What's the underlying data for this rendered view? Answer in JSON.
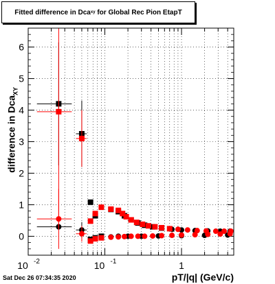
{
  "title": {
    "main": "Fitted difference in Dca",
    "sub": "xy",
    "rest": " for Global Rec Pion EtapT"
  },
  "axes": {
    "ylabel_main": "difference in Dca",
    "ylabel_sub": "XY",
    "xlabel": "pT/|q| (GeV/c)",
    "x_ticks": [
      {
        "value": 0.01,
        "label_base": "10",
        "label_exp": "-2"
      },
      {
        "value": 0.1,
        "label_base": "10",
        "label_exp": "-1"
      },
      {
        "value": 1,
        "label_base": "1",
        "label_exp": ""
      },
      {
        "value": 5,
        "label_base": "",
        "label_exp": ""
      }
    ],
    "y_ticks": [
      "0",
      "1",
      "2",
      "3",
      "4",
      "5",
      "6"
    ]
  },
  "timestamp": "Sat Dec 26 07:34:35 2020",
  "chart_data": {
    "type": "scatter",
    "x_scale": "log",
    "xlim": [
      0.01,
      4.8
    ],
    "ylim": [
      -0.6,
      6.6
    ],
    "grid": true,
    "series": [
      {
        "color": "#000000",
        "points": [
          {
            "x": 0.025,
            "y": 4.2,
            "xerr": 0.012,
            "yerr": 1.95
          },
          {
            "x": 0.05,
            "y": 3.25,
            "xerr": 0.008,
            "yerr": 1.05
          },
          {
            "x": 0.025,
            "y": 0.3,
            "xerr": 0.012,
            "yerr": 0
          },
          {
            "x": 0.05,
            "y": 0.2,
            "xerr": 0.008,
            "yerr": 0.25
          },
          {
            "x": 0.065,
            "y": 1.08,
            "xerr": 0.004,
            "yerr": 0
          },
          {
            "x": 0.075,
            "y": 0.65,
            "xerr": 0.004,
            "yerr": 0
          },
          {
            "x": 0.065,
            "y": -0.1,
            "xerr": 0.004,
            "yerr": 0
          },
          {
            "x": 0.075,
            "y": -0.05,
            "xerr": 0.004,
            "yerr": 0
          },
          {
            "x": 0.09,
            "y": 0.0,
            "xerr": 0.006,
            "yerr": 0
          },
          {
            "x": 0.12,
            "y": -0.02,
            "xerr": 0.008,
            "yerr": 0
          },
          {
            "x": 0.15,
            "y": 0.0,
            "xerr": 0.008,
            "yerr": 0
          },
          {
            "x": 0.2,
            "y": 0.0,
            "xerr": 0.01,
            "yerr": 0
          },
          {
            "x": 0.3,
            "y": 0.0,
            "xerr": 0.015,
            "yerr": 0
          },
          {
            "x": 0.5,
            "y": 0.01,
            "xerr": 0.02,
            "yerr": 0
          },
          {
            "x": 1.0,
            "y": 0.02,
            "xerr": 0.05,
            "yerr": 0
          },
          {
            "x": 2.0,
            "y": 0.03,
            "xerr": 0.1,
            "yerr": 0
          },
          {
            "x": 4.0,
            "y": 0.04,
            "xerr": 0.2,
            "yerr": 0
          },
          {
            "x": 0.12,
            "y": 0.85,
            "xerr": 0.008,
            "yerr": 0
          },
          {
            "x": 0.15,
            "y": 0.78,
            "xerr": 0.008,
            "yerr": 0
          },
          {
            "x": 0.18,
            "y": 0.65,
            "xerr": 0.01,
            "yerr": 0
          },
          {
            "x": 0.22,
            "y": 0.52,
            "xerr": 0.01,
            "yerr": 0
          },
          {
            "x": 0.27,
            "y": 0.42,
            "xerr": 0.012,
            "yerr": 0
          },
          {
            "x": 0.33,
            "y": 0.35,
            "xerr": 0.015,
            "yerr": 0
          },
          {
            "x": 0.42,
            "y": 0.3,
            "xerr": 0.02,
            "yerr": 0
          },
          {
            "x": 0.55,
            "y": 0.26,
            "xerr": 0.03,
            "yerr": 0
          },
          {
            "x": 0.75,
            "y": 0.22,
            "xerr": 0.04,
            "yerr": 0
          },
          {
            "x": 1.0,
            "y": 0.2,
            "xerr": 0.05,
            "yerr": 0
          },
          {
            "x": 1.5,
            "y": 0.18,
            "xerr": 0.08,
            "yerr": 0
          },
          {
            "x": 2.2,
            "y": 0.17,
            "xerr": 0.1,
            "yerr": 0
          },
          {
            "x": 3.2,
            "y": 0.16,
            "xerr": 0.15,
            "yerr": 0
          },
          {
            "x": 4.3,
            "y": 0.16,
            "xerr": 0.2,
            "yerr": 0
          }
        ]
      },
      {
        "color": "#ff0000",
        "points": [
          {
            "x": 0.025,
            "y": 3.95,
            "xerr": 0.012,
            "yerr": 3.7
          },
          {
            "x": 0.05,
            "y": 3.1,
            "xerr": 0.008,
            "yerr": 0.9
          },
          {
            "x": 0.025,
            "y": 0.55,
            "xerr": 0.012,
            "yerr": 0.95
          },
          {
            "x": 0.05,
            "y": 0.08,
            "xerr": 0.008,
            "yerr": 0.25
          },
          {
            "x": 0.065,
            "y": 0.48,
            "xerr": 0.004,
            "yerr": 0
          },
          {
            "x": 0.075,
            "y": 0.72,
            "xerr": 0.004,
            "yerr": 0
          },
          {
            "x": 0.09,
            "y": 0.92,
            "xerr": 0.006,
            "yerr": 0
          },
          {
            "x": 0.12,
            "y": 0.86,
            "xerr": 0.008,
            "yerr": 0
          },
          {
            "x": 0.15,
            "y": 0.82,
            "xerr": 0.008,
            "yerr": 0
          },
          {
            "x": 0.17,
            "y": 0.72,
            "xerr": 0.008,
            "yerr": 0
          },
          {
            "x": 0.19,
            "y": 0.62,
            "xerr": 0.01,
            "yerr": 0
          },
          {
            "x": 0.22,
            "y": 0.52,
            "xerr": 0.01,
            "yerr": 0
          },
          {
            "x": 0.26,
            "y": 0.44,
            "xerr": 0.012,
            "yerr": 0
          },
          {
            "x": 0.31,
            "y": 0.38,
            "xerr": 0.015,
            "yerr": 0
          },
          {
            "x": 0.37,
            "y": 0.33,
            "xerr": 0.018,
            "yerr": 0
          },
          {
            "x": 0.45,
            "y": 0.3,
            "xerr": 0.02,
            "yerr": 0
          },
          {
            "x": 0.55,
            "y": 0.27,
            "xerr": 0.03,
            "yerr": 0
          },
          {
            "x": 0.7,
            "y": 0.24,
            "xerr": 0.035,
            "yerr": 0
          },
          {
            "x": 0.9,
            "y": 0.22,
            "xerr": 0.045,
            "yerr": 0
          },
          {
            "x": 1.2,
            "y": 0.2,
            "xerr": 0.06,
            "yerr": 0
          },
          {
            "x": 1.6,
            "y": 0.18,
            "xerr": 0.08,
            "yerr": 0
          },
          {
            "x": 2.1,
            "y": 0.17,
            "xerr": 0.1,
            "yerr": 0
          },
          {
            "x": 2.8,
            "y": 0.16,
            "xerr": 0.14,
            "yerr": 0
          },
          {
            "x": 3.6,
            "y": 0.16,
            "xerr": 0.18,
            "yerr": 0
          },
          {
            "x": 4.4,
            "y": 0.16,
            "xerr": 0.2,
            "yerr": 0
          },
          {
            "x": 0.065,
            "y": -0.15,
            "xerr": 0.004,
            "yerr": 0
          },
          {
            "x": 0.075,
            "y": -0.08,
            "xerr": 0.004,
            "yerr": 0
          },
          {
            "x": 0.09,
            "y": -0.05,
            "xerr": 0.006,
            "yerr": 0
          },
          {
            "x": 0.12,
            "y": -0.03,
            "xerr": 0.008,
            "yerr": 0
          },
          {
            "x": 0.15,
            "y": -0.02,
            "xerr": 0.008,
            "yerr": 0
          },
          {
            "x": 0.18,
            "y": -0.01,
            "xerr": 0.01,
            "yerr": 0
          },
          {
            "x": 0.22,
            "y": 0.0,
            "xerr": 0.01,
            "yerr": 0
          },
          {
            "x": 0.27,
            "y": 0.0,
            "xerr": 0.012,
            "yerr": 0
          },
          {
            "x": 0.33,
            "y": 0.0,
            "xerr": 0.015,
            "yerr": 0
          },
          {
            "x": 0.42,
            "y": 0.01,
            "xerr": 0.02,
            "yerr": 0
          },
          {
            "x": 0.55,
            "y": 0.02,
            "xerr": 0.03,
            "yerr": 0
          },
          {
            "x": 0.75,
            "y": 0.03,
            "xerr": 0.04,
            "yerr": 0
          },
          {
            "x": 1.0,
            "y": 0.04,
            "xerr": 0.05,
            "yerr": 0
          },
          {
            "x": 1.5,
            "y": 0.05,
            "xerr": 0.08,
            "yerr": 0
          },
          {
            "x": 2.2,
            "y": 0.06,
            "xerr": 0.1,
            "yerr": 0
          },
          {
            "x": 3.2,
            "y": 0.07,
            "xerr": 0.15,
            "yerr": 0
          },
          {
            "x": 4.3,
            "y": 0.08,
            "xerr": 0.2,
            "yerr": 0
          }
        ]
      }
    ]
  }
}
